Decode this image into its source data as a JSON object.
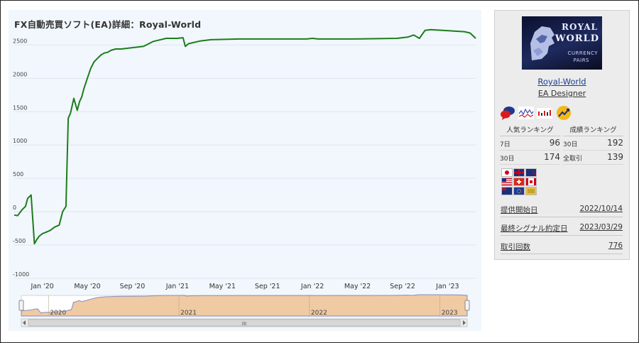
{
  "title": "FX自動売買ソフト(EA)詳細：Royal-World",
  "chart_data": {
    "type": "line",
    "title": "FX自動売買ソフト(EA)詳細：Royal-World",
    "xlabel": "",
    "ylabel": "",
    "ylim": [
      -1000,
      2600
    ],
    "xlim": [
      0,
      41
    ],
    "y_ticks": [
      -1000,
      -500,
      0,
      500,
      1000,
      1500,
      2000,
      2500
    ],
    "y_tick_labels": [
      "-1000",
      "-500",
      "0",
      "500",
      "1000",
      "1500",
      "2000",
      "2500"
    ],
    "x_ticks": [
      {
        "label": "Jan '20",
        "pos": 2.5
      },
      {
        "label": "May '20",
        "pos": 6.5
      },
      {
        "label": "Sep '20",
        "pos": 10.5
      },
      {
        "label": "Jan '21",
        "pos": 14.5
      },
      {
        "label": "May '21",
        "pos": 18.5
      },
      {
        "label": "Sep '21",
        "pos": 22.5
      },
      {
        "label": "Jan '22",
        "pos": 26.5
      },
      {
        "label": "May '22",
        "pos": 30.5
      },
      {
        "label": "Sep '22",
        "pos": 34.5
      },
      {
        "label": "Jan '23",
        "pos": 38.5
      }
    ],
    "grid": true,
    "legend": "none",
    "series_color": "#1c7d1c",
    "series": [
      {
        "x": [
          0,
          0.3,
          0.7,
          1.0,
          1.2,
          1.5,
          1.8,
          2.0,
          2.2,
          2.5,
          2.8,
          3.2,
          3.6,
          4.0,
          4.3,
          4.6,
          4.8,
          5.0,
          5.3,
          5.6,
          5.8,
          6.0,
          6.2,
          6.5,
          6.8,
          7.1,
          7.4,
          7.7,
          8.0,
          8.3,
          8.6,
          8.8,
          9.0,
          9.5,
          10.5,
          11.5,
          12.3,
          12.5,
          13.5,
          14.5,
          15.0,
          15.2,
          15.5,
          16.5,
          17.5,
          20.0,
          23.0,
          26.0,
          26.5,
          27.0,
          30.0,
          34.0,
          35.0,
          35.5,
          36.0,
          36.5,
          37.0,
          40.0,
          40.5,
          41.0
        ],
        "values": [
          -50,
          -60,
          30,
          80,
          200,
          250,
          -480,
          -420,
          -370,
          -330,
          -310,
          -280,
          -230,
          -200,
          0,
          80,
          1400,
          1480,
          1700,
          1520,
          1650,
          1720,
          1850,
          2000,
          2150,
          2250,
          2300,
          2350,
          2380,
          2390,
          2420,
          2430,
          2440,
          2440,
          2460,
          2480,
          2550,
          2560,
          2600,
          2600,
          2610,
          2480,
          2520,
          2560,
          2580,
          2590,
          2590,
          2590,
          2600,
          2590,
          2590,
          2600,
          2620,
          2650,
          2600,
          2720,
          2730,
          2700,
          2680,
          2600
        ]
      }
    ],
    "navigator": {
      "year_labels": [
        "2020",
        "2021",
        "2022",
        "2023"
      ],
      "year_positions": [
        2.5,
        14.5,
        26.5,
        38.5
      ],
      "fill_color": "#efcaa3",
      "line_color": "#8b8bb9",
      "scroll_label": "III"
    }
  },
  "sidebar": {
    "logo": {
      "line1": "ROYAL",
      "line2": "WORLD",
      "line3": "CURRENCY",
      "line4": "PAIRS"
    },
    "ea_name": "Royal-World",
    "ea_role": "EA Designer",
    "badges": [
      "chat-icon",
      "line-chart-icon",
      "bar-chart-icon",
      "trend-icon"
    ],
    "popular_rank": {
      "title": "人気ランキング",
      "rows": [
        {
          "label": "7日",
          "value": "96"
        },
        {
          "label": "30日",
          "value": "174"
        }
      ]
    },
    "performance_rank": {
      "title": "成績ランキング",
      "rows": [
        {
          "label": "30日",
          "value": "192"
        },
        {
          "label": "全取引",
          "value": "139"
        }
      ]
    },
    "currencies": [
      "JPY",
      "GBP",
      "NZD",
      "USD",
      "CHF",
      "CAD",
      "AUD",
      "EUR",
      "GOLD"
    ],
    "info": [
      {
        "label": "提供開始日",
        "value": "2022/10/14"
      },
      {
        "label": "最終シグナル約定日",
        "value": "2023/03/29"
      },
      {
        "label": "取引回数",
        "value": "776"
      }
    ]
  },
  "colors": {
    "line": "#1c7d1c",
    "panel_bg": "#f1f7fc",
    "link": "#1a3d8f"
  }
}
